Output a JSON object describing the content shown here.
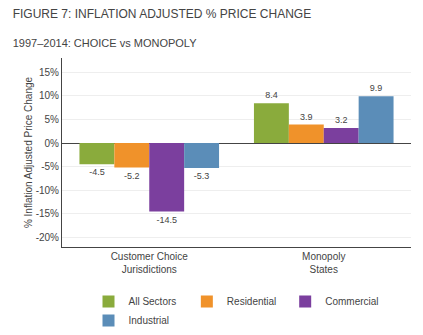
{
  "chart_data": {
    "type": "bar",
    "title": "FIGURE 7: INFLATION ADJUSTED % PRICE CHANGE",
    "subtitle": "1997–2014: CHOICE vs MONOPOLY",
    "categories": [
      "Customer Choice\nJurisdictions",
      "Monopoly\nStates"
    ],
    "series": [
      {
        "name": "All Sectors",
        "color": "#8aab3c",
        "values": [
          -4.5,
          8.4
        ]
      },
      {
        "name": "Residential",
        "color": "#f0922a",
        "values": [
          -5.2,
          3.9
        ]
      },
      {
        "name": "Commercial",
        "color": "#7b3f9e",
        "values": [
          -14.5,
          3.2
        ]
      },
      {
        "name": "Industrial",
        "color": "#5b8db8",
        "values": [
          -5.3,
          9.9
        ]
      }
    ],
    "ylabel": "% Inflation Adjusted Price Change",
    "ylim": [
      -22,
      18
    ],
    "yticks": [
      {
        "value": -20,
        "label": "-20%"
      },
      {
        "value": -15,
        "label": "-15%"
      },
      {
        "value": -10,
        "label": "-10%"
      },
      {
        "value": -5,
        "label": "-5%"
      },
      {
        "value": 0,
        "label": "0%"
      },
      {
        "value": 5,
        "label": "5%"
      },
      {
        "value": 10,
        "label": "10%"
      },
      {
        "value": 15,
        "label": "15%"
      }
    ],
    "grid": true,
    "legend": "bottom",
    "data_labels": true
  }
}
